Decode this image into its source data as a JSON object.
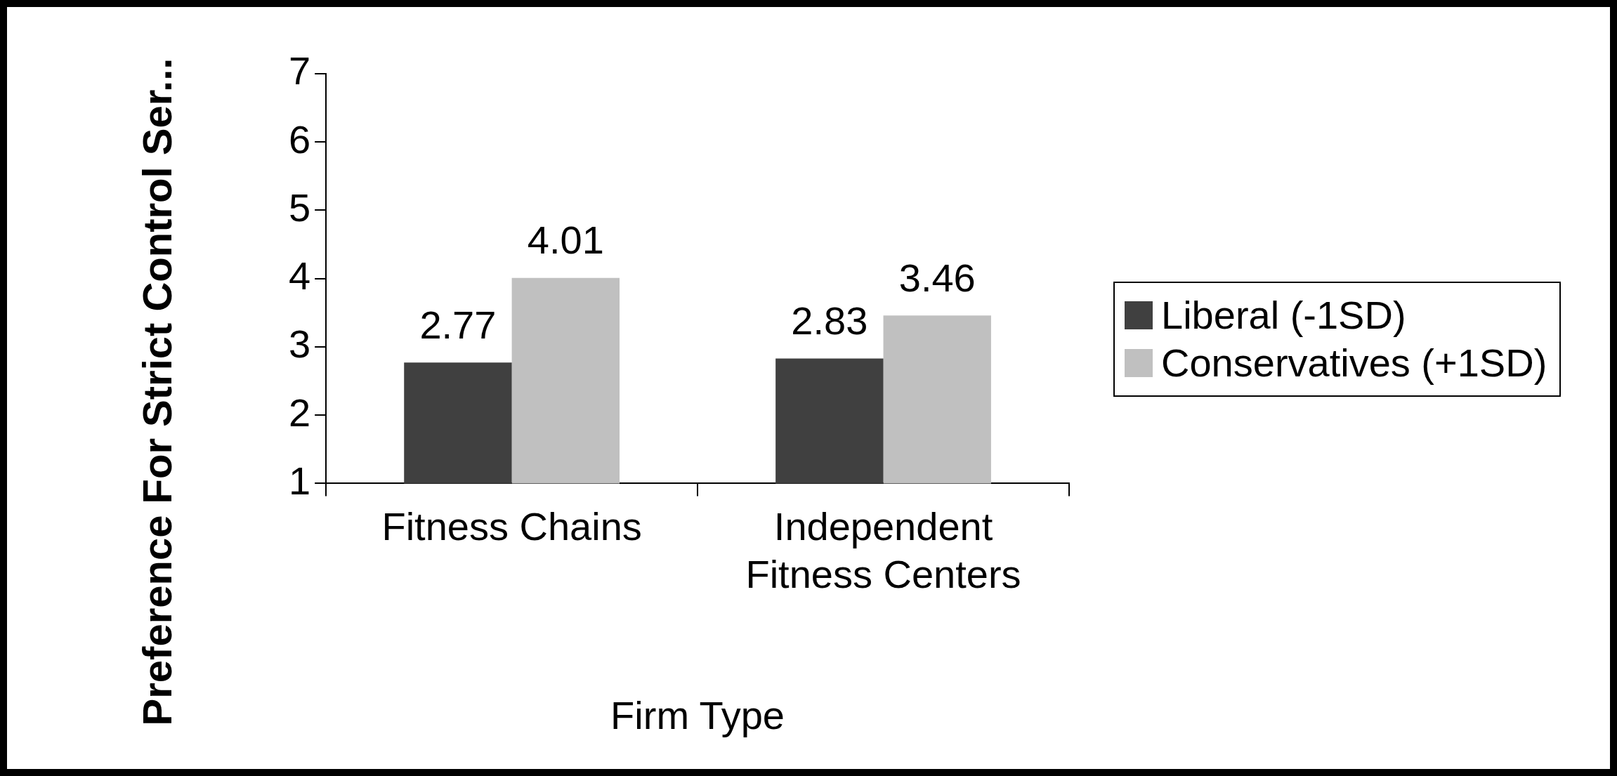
{
  "chart_data": {
    "type": "bar",
    "xlabel": "Firm Type",
    "ylabel": "Preference For Strict Control Ser...",
    "categories": [
      "Fitness Chains",
      "Independent Fitness Centers"
    ],
    "series": [
      {
        "name": "Liberal (-1SD)",
        "color": "#404040",
        "values": [
          2.77,
          2.83
        ]
      },
      {
        "name": "Conservatives (+1SD)",
        "color": "#c0c0c0",
        "values": [
          4.01,
          3.46
        ]
      }
    ],
    "ylim": [
      1,
      7
    ],
    "yticks": [
      1,
      2,
      3,
      4,
      5,
      6,
      7
    ],
    "grid": false,
    "legend": "right",
    "data_labels": true
  }
}
